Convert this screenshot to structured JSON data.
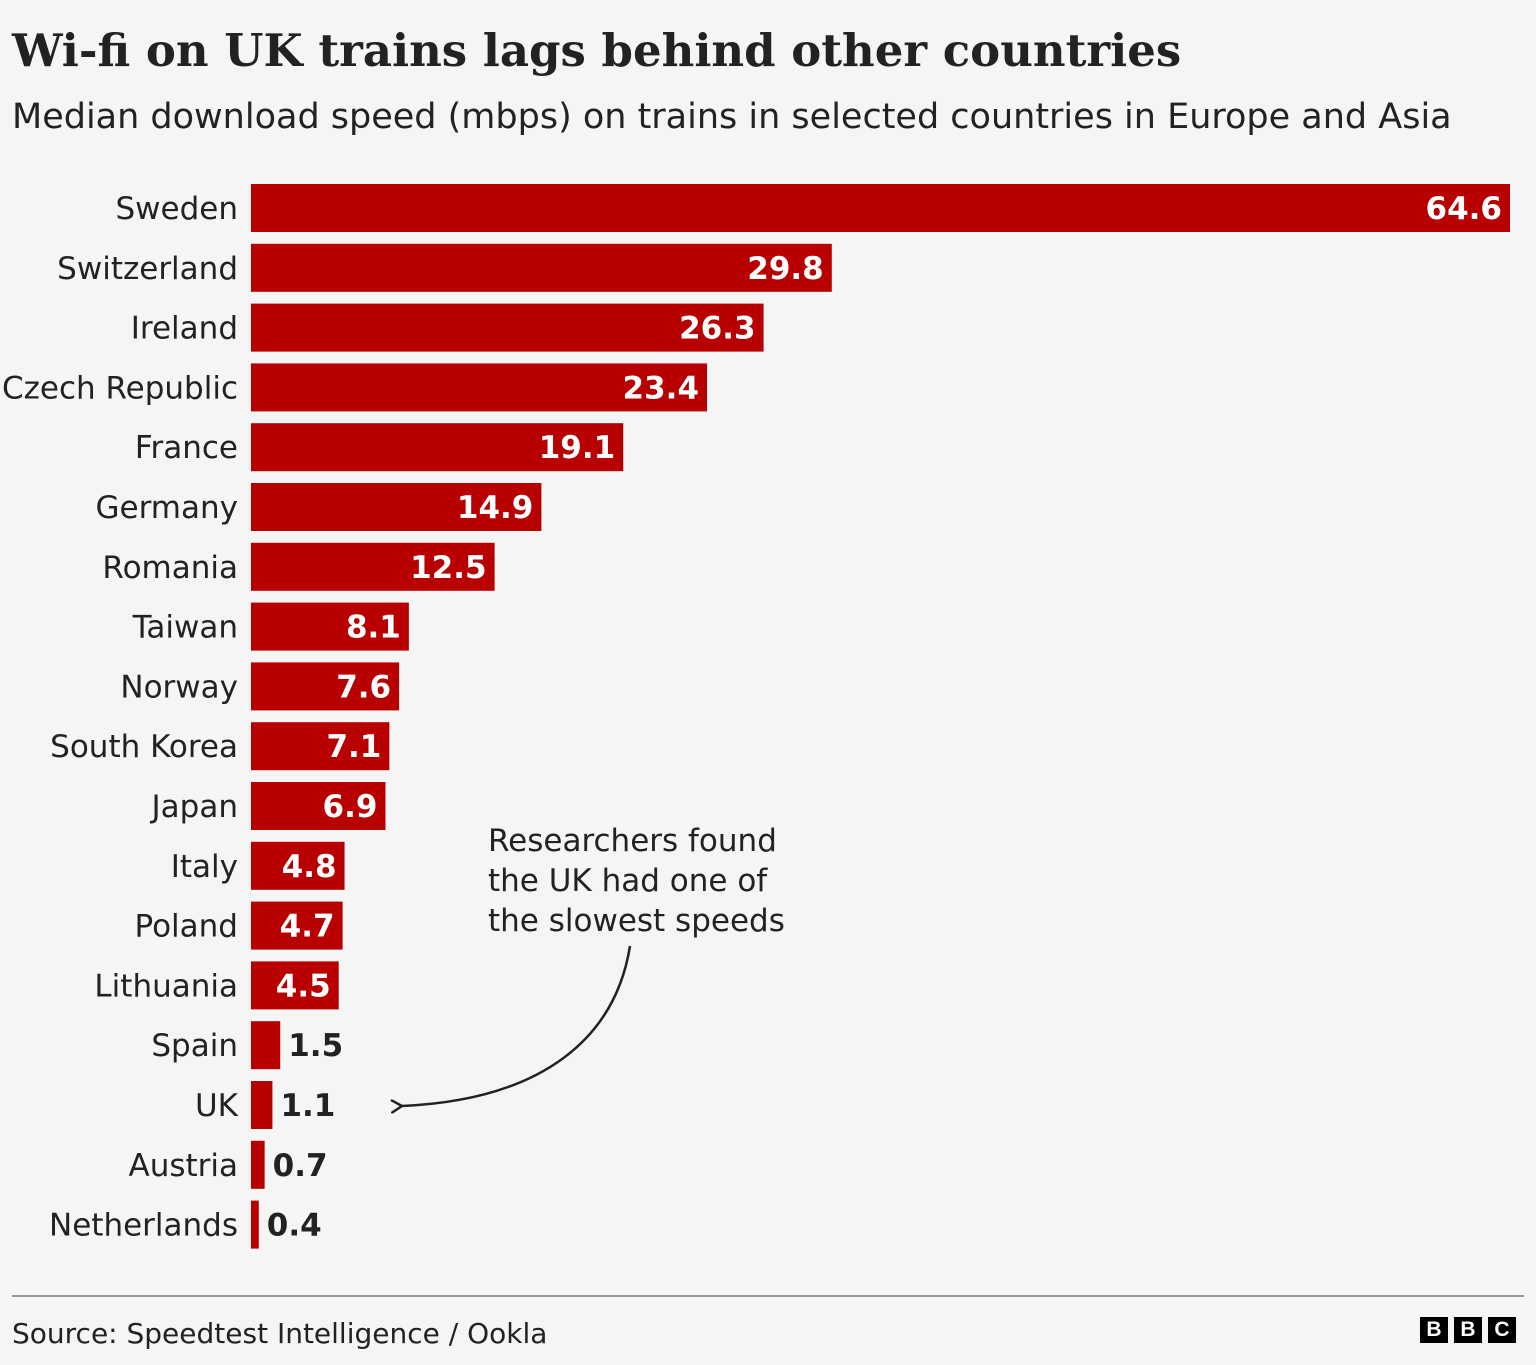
{
  "title": "Wi-fi on UK trains lags behind other countries",
  "subtitle": "Median download speed (mbps) on trains in selected countries in Europe and Asia",
  "source": "Source: Speedtest Intelligence / Ookla",
  "logo": [
    "B",
    "B",
    "C"
  ],
  "annotation": {
    "lines": [
      "Researchers found",
      "the UK had one of",
      "the slowest speeds"
    ],
    "target": "UK"
  },
  "colors": {
    "bar": "#b80000",
    "background": "#f5f5f5",
    "text": "#222222",
    "label_inside": "#ffffff"
  },
  "chart_data": {
    "type": "bar",
    "orientation": "horizontal",
    "title": "Wi-fi on UK trains lags behind other countries",
    "subtitle": "Median download speed (mbps) on trains in selected countries in Europe and Asia",
    "categories": [
      "Sweden",
      "Switzerland",
      "Ireland",
      "Czech Republic",
      "France",
      "Germany",
      "Romania",
      "Taiwan",
      "Norway",
      "South Korea",
      "Japan",
      "Italy",
      "Poland",
      "Lithuania",
      "Spain",
      "UK",
      "Austria",
      "Netherlands"
    ],
    "values": [
      64.6,
      29.8,
      26.3,
      23.4,
      19.1,
      14.9,
      12.5,
      8.1,
      7.6,
      7.1,
      6.9,
      4.8,
      4.7,
      4.5,
      1.5,
      1.1,
      0.7,
      0.4
    ],
    "value_labels": [
      "64.6",
      "29.8",
      "26.3",
      "23.4",
      "19.1",
      "14.9",
      "12.5",
      "8.1",
      "7.6",
      "7.1",
      "6.9",
      "4.8",
      "4.7",
      "4.5",
      "1.5",
      "1.1",
      "0.7",
      "0.4"
    ],
    "xlim": [
      0,
      64.6
    ],
    "grid": false,
    "legend": "none"
  }
}
